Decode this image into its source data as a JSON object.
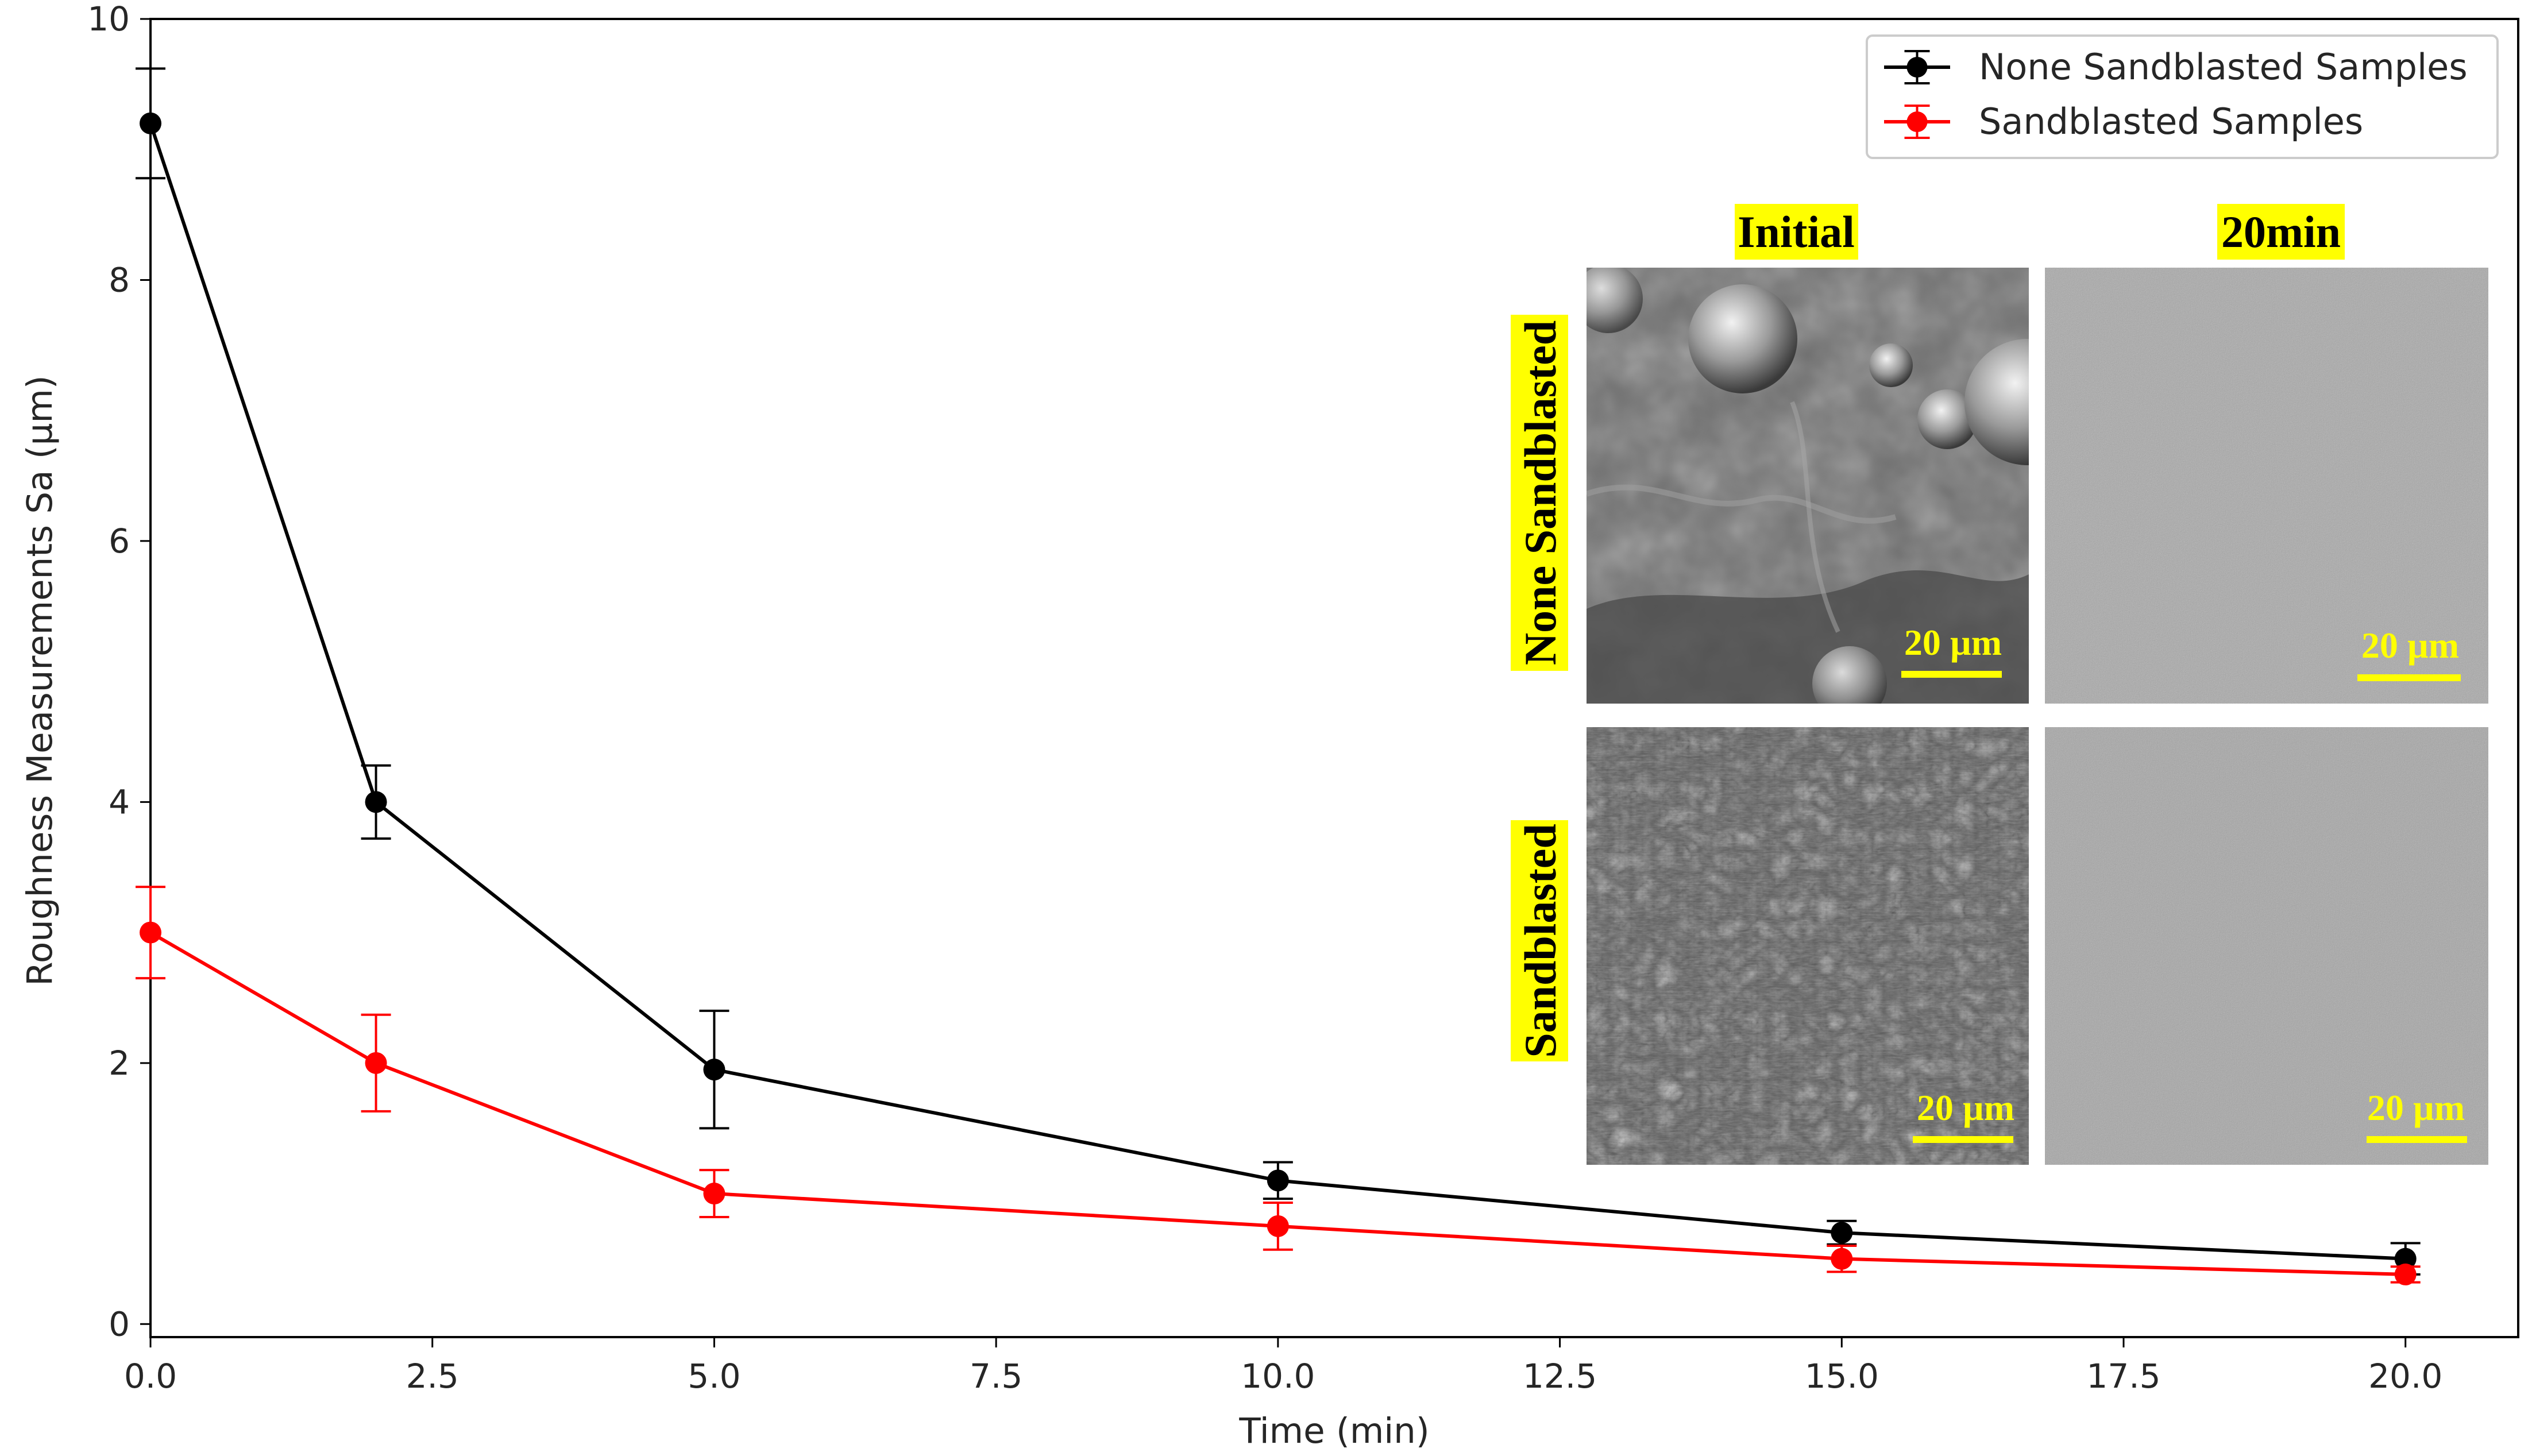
{
  "chart_data": {
    "type": "line",
    "title": "",
    "xlabel": "Time (min)",
    "ylabel": "Roughness Measurements Sa (µm)",
    "xlim": [
      0,
      21
    ],
    "ylim": [
      -0.1,
      10
    ],
    "x_ticks": [
      "0.0",
      "2.5",
      "5.0",
      "7.5",
      "10.0",
      "12.5",
      "15.0",
      "17.5",
      "20.0"
    ],
    "y_ticks": [
      "0",
      "2",
      "4",
      "6",
      "8",
      "10"
    ],
    "x": [
      0,
      2,
      5,
      10,
      15,
      20
    ],
    "series": [
      {
        "name": "None Sandblasted Samples",
        "color": "#000000",
        "values": [
          9.2,
          4.0,
          1.95,
          1.1,
          0.7,
          0.5
        ],
        "errors": [
          0.42,
          0.28,
          0.45,
          0.14,
          0.09,
          0.12
        ]
      },
      {
        "name": "Sandblasted Samples",
        "color": "#ff0000",
        "values": [
          3.0,
          2.0,
          1.0,
          0.75,
          0.5,
          0.38
        ],
        "errors": [
          0.35,
          0.37,
          0.18,
          0.18,
          0.1,
          0.06
        ]
      }
    ],
    "legend_position": "top-right",
    "grid": false
  },
  "inset": {
    "column_titles": [
      "Initial",
      "20min"
    ],
    "row_labels": [
      "None Sandblasted",
      "Sandblasted"
    ],
    "scale_bar_label": "20 µm",
    "label_highlight_color": "#ffff00",
    "scale_bar_color": "#ffff00"
  }
}
